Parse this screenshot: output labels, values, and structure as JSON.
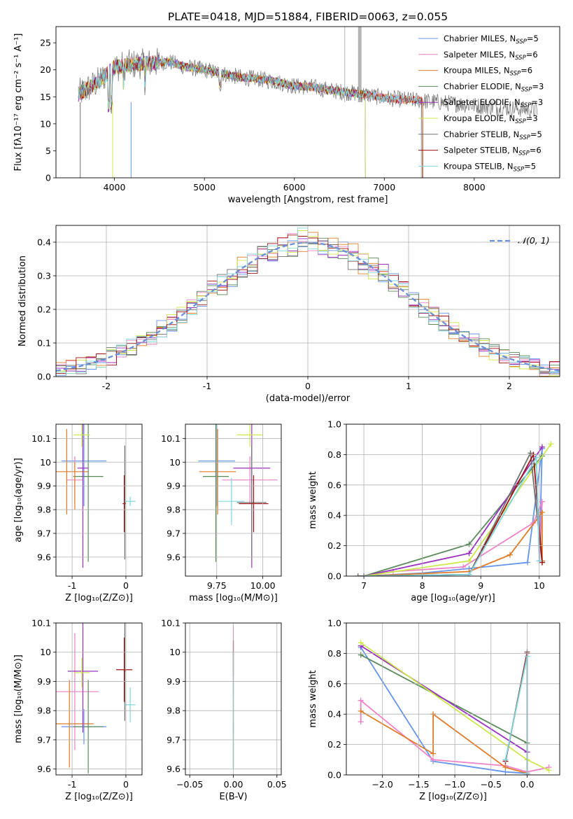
{
  "figure_title": "PLATE=0418, MJD=51884, FIBERID=0063, z=0.055",
  "colors": {
    "chab_miles": "#6495ed",
    "salp_miles": "#ee82c8",
    "krou_miles": "#e07b28",
    "chab_elodie": "#5a8a5a",
    "salp_elodie": "#9a30c0",
    "krou_elodie": "#cde84a",
    "chab_stelib": "#707070",
    "salp_stelib": "#a01010",
    "krou_stelib": "#7fd7df",
    "normal_curve": "#6a8fd8",
    "grid": "#b0b0b0",
    "tellurics": "#b4b4b4"
  },
  "chart_data": [
    {
      "id": "spectrum",
      "type": "line",
      "title": "PLATE=0418, MJD=51884, FIBERID=0063, z=0.055",
      "xlabel": "wavelength [Angstrom, rest frame]",
      "ylabel": "Flux [fλ10⁻¹⁷ erg cm⁻² s⁻¹ A⁻¹]",
      "xlim": [
        3350,
        8950
      ],
      "ylim": [
        0,
        28
      ],
      "xticks": [
        4000,
        5000,
        6000,
        7000,
        8000
      ],
      "yticks": [
        0,
        5,
        10,
        15,
        20,
        25
      ],
      "grid": false,
      "legend": "upper right",
      "continuum": [
        [
          3600,
          15.5
        ],
        [
          3800,
          17.5
        ],
        [
          4000,
          20.5
        ],
        [
          4200,
          21.0
        ],
        [
          4400,
          21.2
        ],
        [
          4600,
          21.5
        ],
        [
          4800,
          20.5
        ],
        [
          5000,
          20.0
        ],
        [
          5200,
          19.3
        ],
        [
          5400,
          18.6
        ],
        [
          5600,
          18.3
        ],
        [
          5800,
          17.8
        ],
        [
          6000,
          17.0
        ],
        [
          6200,
          16.8
        ],
        [
          6400,
          16.2
        ],
        [
          6600,
          15.8
        ],
        [
          6800,
          15.4
        ],
        [
          7000,
          14.8
        ],
        [
          7200,
          14.5
        ],
        [
          7400,
          14.3
        ],
        [
          7600,
          14.0
        ],
        [
          7800,
          13.7
        ],
        [
          8000,
          13.4
        ],
        [
          8200,
          13.1
        ],
        [
          8400,
          12.9
        ],
        [
          8700,
          12.5
        ]
      ],
      "series": [
        {
          "key": "chab_miles",
          "name": "Chabrier MILES, N_SSP=5",
          "legend_main": "Chabrier MILES, N",
          "legend_sub": "SSP",
          "legend_tail": "=5",
          "x_end": 7430
        },
        {
          "key": "salp_miles",
          "name": "Salpeter MILES, N_SSP=6",
          "legend_main": "Salpeter MILES, N",
          "legend_sub": "SSP",
          "legend_tail": "=6",
          "x_end": 7430
        },
        {
          "key": "krou_miles",
          "name": "Kroupa MILES, N_SSP=6",
          "legend_main": "Kroupa MILES, N",
          "legend_sub": "SSP",
          "legend_tail": "=6",
          "x_end": 7430
        },
        {
          "key": "chab_elodie",
          "name": "Chabrier ELODIE, N_SSP=3",
          "legend_main": "Chabrier ELODIE, N",
          "legend_sub": "SSP",
          "legend_tail": "=3",
          "x_end": 6790
        },
        {
          "key": "salp_elodie",
          "name": "Salpeter ELODIE, N_SSP=3",
          "legend_main": "Salpeter ELODIE, N",
          "legend_sub": "SSP",
          "legend_tail": "=3",
          "x_end": 6790
        },
        {
          "key": "krou_elodie",
          "name": "Kroupa ELODIE, N_SSP=3",
          "legend_main": "Kroupa ELODIE, N",
          "legend_sub": "SSP",
          "legend_tail": "=3",
          "x_end": 6790
        },
        {
          "key": "chab_stelib",
          "name": "Chabrier STELIB, N_SSP=5",
          "legend_main": "Chabrier STELIB, N",
          "legend_sub": "SSP",
          "legend_tail": "=5",
          "x_end": 8700
        },
        {
          "key": "salp_stelib",
          "name": "Salpeter STELIB, N_SSP=6",
          "legend_main": "Salpeter STELIB, N",
          "legend_sub": "SSP",
          "legend_tail": "=6",
          "x_end": 7420
        },
        {
          "key": "krou_stelib",
          "name": "Kroupa STELIB, N_SSP=5",
          "legend_main": "Kroupa STELIB, N",
          "legend_sub": "SSP",
          "legend_tail": "=5",
          "x_end": 7410
        }
      ]
    },
    {
      "id": "residuals",
      "type": "histogram",
      "xlabel": "(data-model)/error",
      "ylabel": "Normed distribution",
      "xlim": [
        -2.5,
        2.5
      ],
      "ylim": [
        0,
        0.45
      ],
      "xticks": [
        -2,
        -1,
        0,
        1,
        2
      ],
      "yticks": [
        0.0,
        0.1,
        0.2,
        0.3,
        0.4
      ],
      "grid": true,
      "legend": "upper right",
      "reference_curve": {
        "name": "𝒩(0, 1)",
        "mean": 0,
        "sigma": 1
      },
      "bin_width": 0.1,
      "note_series": "approximately normal histograms, one per model set"
    },
    {
      "id": "age_vs_z",
      "type": "errorbar",
      "xlabel": "Z [log₁₀(Z/Z⊙)]",
      "ylabel": "age  [log₁₀(age/yr)]",
      "xlim": [
        -1.3,
        0.3
      ],
      "ylim": [
        9.52,
        10.16
      ],
      "xticks": [
        -1,
        0
      ],
      "yticks": [
        9.6,
        9.7,
        9.8,
        9.9,
        10.0,
        10.1
      ],
      "grid": true,
      "points": [
        {
          "key": "chab_miles",
          "x": -0.78,
          "xerr": 0.42,
          "y": 10.005,
          "yerr": 0.19
        },
        {
          "key": "salp_miles",
          "x": -0.95,
          "xerr": 0.15,
          "y": 9.925,
          "yerr": 0.1
        },
        {
          "key": "krou_miles",
          "x": -1.1,
          "xerr": 0.4,
          "y": 9.96,
          "yerr": 0.18
        },
        {
          "key": "chab_elodie",
          "x": -0.7,
          "xerr": 0.28,
          "y": 9.94,
          "yerr": 0.36
        },
        {
          "key": "salp_elodie",
          "x": -0.8,
          "xerr": 0.1,
          "y": 9.975,
          "yerr": 0.42
        },
        {
          "key": "krou_elodie",
          "x": -0.82,
          "xerr": 0.15,
          "y": 10.115,
          "yerr": 0.05
        },
        {
          "key": "chab_stelib",
          "x": -0.02,
          "xerr": 0.02,
          "y": 9.83,
          "yerr": 0.24
        },
        {
          "key": "salp_stelib",
          "x": -0.03,
          "xerr": 0.03,
          "y": 9.825,
          "yerr": 0.12
        },
        {
          "key": "krou_stelib",
          "x": 0.08,
          "xerr": 0.1,
          "y": 9.835,
          "yerr": 0.02
        },
        {
          "key": "krou_miles",
          "x": -0.95,
          "xerr": 0.01,
          "y": 9.9,
          "yerr": 0.1
        }
      ]
    },
    {
      "id": "age_vs_mass",
      "type": "errorbar",
      "xlabel": "mass [log₁₀(M/M⊙)]",
      "ylabel": "",
      "xlim": [
        9.58,
        10.1
      ],
      "ylim": [
        9.52,
        10.16
      ],
      "xticks": [
        9.75,
        10.0
      ],
      "xticklabels": [
        "9.75",
        "10.00"
      ],
      "yticks": [
        9.6,
        9.7,
        9.8,
        9.9,
        10.0,
        10.1
      ],
      "grid": true,
      "points": [
        {
          "key": "chab_miles",
          "x": 9.75,
          "xerr": 0.1,
          "y": 10.005,
          "yerr": 0.19
        },
        {
          "key": "salp_miles",
          "x": 9.93,
          "xerr": 0.15,
          "y": 9.925,
          "yerr": 0.1
        },
        {
          "key": "krou_miles",
          "x": 9.755,
          "xerr": 0.1,
          "y": 9.96,
          "yerr": 0.18
        },
        {
          "key": "chab_elodie",
          "x": 9.745,
          "xerr": 0.07,
          "y": 9.94,
          "yerr": 0.36
        },
        {
          "key": "salp_elodie",
          "x": 9.94,
          "xerr": 0.1,
          "y": 9.975,
          "yerr": 0.42
        },
        {
          "key": "krou_elodie",
          "x": 9.93,
          "xerr": 0.07,
          "y": 10.115,
          "yerr": 0.05
        },
        {
          "key": "chab_stelib",
          "x": 9.94,
          "xerr": 0.08,
          "y": 9.83,
          "yerr": 0.24
        },
        {
          "key": "salp_stelib",
          "x": 9.95,
          "xerr": 0.08,
          "y": 9.825,
          "yerr": 0.12
        },
        {
          "key": "krou_stelib",
          "x": 9.83,
          "xerr": 0.07,
          "y": 9.835,
          "yerr": 0.1
        }
      ]
    },
    {
      "id": "weight_vs_age",
      "type": "line",
      "xlabel": "age  [log₁₀(age/yr)]",
      "ylabel": "mass weight",
      "xlim": [
        6.7,
        10.35
      ],
      "ylim": [
        0,
        1.0
      ],
      "xticks": [
        7,
        8,
        9,
        10
      ],
      "yticks": [
        0.0,
        0.2,
        0.4,
        0.6,
        0.8,
        1.0
      ],
      "grid": true,
      "series": [
        {
          "key": "chab_miles",
          "x": [
            7.0,
            8.0,
            8.8,
            9.8,
            10.05,
            10.0
          ],
          "y": [
            0.0,
            0.02,
            0.05,
            0.09,
            0.84,
            0.1
          ]
        },
        {
          "key": "salp_miles",
          "x": [
            7.0,
            7.5,
            8.7,
            9.9,
            10.05,
            10.0
          ],
          "y": [
            0.0,
            0.03,
            0.06,
            0.35,
            0.49,
            0.1
          ]
        },
        {
          "key": "krou_miles",
          "x": [
            7.0,
            8.8,
            9.5,
            10.05,
            10.05
          ],
          "y": [
            0.0,
            0.03,
            0.14,
            0.42,
            0.1
          ]
        },
        {
          "key": "chab_elodie",
          "x": [
            7.0,
            8.8,
            10.05
          ],
          "y": [
            0.0,
            0.21,
            0.79
          ]
        },
        {
          "key": "salp_elodie",
          "x": [
            7.0,
            8.8,
            10.05
          ],
          "y": [
            0.0,
            0.15,
            0.85
          ]
        },
        {
          "key": "krou_elodie",
          "x": [
            7.0,
            8.8,
            10.2
          ],
          "y": [
            0.0,
            0.1,
            0.87
          ]
        },
        {
          "key": "chab_stelib",
          "x": [
            6.9,
            8.8,
            9.85,
            10.05
          ],
          "y": [
            0.0,
            0.01,
            0.81,
            0.09
          ]
        },
        {
          "key": "salp_stelib",
          "x": [
            7.0,
            8.8,
            9.9,
            10.05
          ],
          "y": [
            0.0,
            0.01,
            0.8,
            0.09
          ]
        },
        {
          "key": "krou_stelib",
          "x": [
            7.0,
            8.8,
            9.95,
            10.0
          ],
          "y": [
            0.0,
            0.01,
            0.78,
            0.1
          ]
        }
      ]
    },
    {
      "id": "mass_vs_z",
      "type": "errorbar",
      "xlabel": "Z [log₁₀(Z/Z⊙)]",
      "ylabel": "mass [log₁₀(M/M⊙)]",
      "xlim": [
        -1.3,
        0.3
      ],
      "ylim": [
        9.58,
        10.1
      ],
      "xticks": [
        -1,
        0
      ],
      "yticks": [
        9.6,
        9.7,
        9.8,
        9.9,
        10.0,
        10.1
      ],
      "grid": true,
      "points": [
        {
          "key": "chab_miles",
          "x": -0.78,
          "xerr": 0.42,
          "y": 9.745,
          "yerr": 0.06
        },
        {
          "key": "salp_miles",
          "x": -0.95,
          "xerr": 0.45,
          "y": 9.865,
          "yerr": 0.2
        },
        {
          "key": "krou_miles",
          "x": -1.05,
          "xerr": 0.45,
          "y": 9.755,
          "yerr": 0.15
        },
        {
          "key": "chab_elodie",
          "x": -0.7,
          "xerr": 0.28,
          "y": 9.745,
          "yerr": 0.16
        },
        {
          "key": "salp_elodie",
          "x": -0.8,
          "xerr": 0.28,
          "y": 9.935,
          "yerr": 0.21
        },
        {
          "key": "krou_elodie",
          "x": -0.82,
          "xerr": 0.15,
          "y": 9.93,
          "yerr": 0.05
        },
        {
          "key": "chab_stelib",
          "x": -0.02,
          "xerr": 0.02,
          "y": 9.935,
          "yerr": 0.17
        },
        {
          "key": "salp_stelib",
          "x": -0.03,
          "xerr": 0.15,
          "y": 9.94,
          "yerr": 0.11
        },
        {
          "key": "krou_stelib",
          "x": 0.08,
          "xerr": 0.1,
          "y": 9.82,
          "yerr": 0.06
        }
      ]
    },
    {
      "id": "mass_vs_ebv",
      "type": "errorbar",
      "xlabel": "E(B-V)",
      "ylabel": "",
      "xlim": [
        -0.055,
        0.055
      ],
      "ylim": [
        9.58,
        10.1
      ],
      "xticks": [
        -0.05,
        0.0,
        0.05
      ],
      "xticklabels": [
        "−0.05",
        "0.00",
        "0.05"
      ],
      "yticks": [
        9.6,
        9.7,
        9.8,
        9.9,
        10.0,
        10.1
      ],
      "grid": true,
      "points": [
        {
          "key": "salp_miles",
          "x": 0.0,
          "xerr": 0.0,
          "y": 9.97,
          "yerr": 0.12
        },
        {
          "key": "salp_stelib",
          "x": 0.0,
          "xerr": 0.0,
          "y": 9.98,
          "yerr": 0.06
        },
        {
          "key": "salp_elodie",
          "x": 0.0,
          "xerr": 0.0,
          "y": 9.74,
          "yerr": 0.02
        },
        {
          "key": "chab_elodie",
          "x": 0.0,
          "xerr": 0.0,
          "y": 9.8,
          "yerr": 0.2
        },
        {
          "key": "krou_stelib",
          "x": 0.0,
          "xerr": 0.0,
          "y": 9.8,
          "yerr": 0.2
        }
      ]
    },
    {
      "id": "weight_vs_z",
      "type": "line",
      "xlabel": "Z [log₁₀(Z/Z⊙)]",
      "ylabel": "mass weight",
      "xlim": [
        -2.5,
        0.45
      ],
      "ylim": [
        0,
        1.0
      ],
      "xticks": [
        -2.0,
        -1.5,
        -1.0,
        -0.5,
        0.0
      ],
      "xticklabels": [
        "−2.0",
        "−1.5",
        "−1.0",
        "−0.5",
        "0.0"
      ],
      "yticks": [
        0.0,
        0.2,
        0.4,
        0.6,
        0.8,
        1.0
      ],
      "grid": true,
      "series": [
        {
          "key": "chab_miles",
          "x": [
            -2.3,
            -1.3,
            -0.3,
            0.0
          ],
          "y": [
            0.84,
            0.09,
            0.02,
            0.01
          ]
        },
        {
          "key": "salp_miles",
          "x": [
            -2.3,
            -2.3,
            -1.3,
            -0.3,
            0.0,
            0.3
          ],
          "y": [
            0.35,
            0.49,
            0.1,
            0.06,
            0.02,
            0.05
          ]
        },
        {
          "key": "krou_miles",
          "x": [
            -2.3,
            -1.3,
            -1.3,
            -0.3,
            0.0
          ],
          "y": [
            0.42,
            0.14,
            0.4,
            0.05,
            0.01
          ]
        },
        {
          "key": "chab_elodie",
          "x": [
            -2.3,
            0.0,
            0.0
          ],
          "y": [
            0.79,
            0.21,
            0.0
          ]
        },
        {
          "key": "salp_elodie",
          "x": [
            -2.3,
            0.0,
            0.0
          ],
          "y": [
            0.85,
            0.15,
            0.0
          ]
        },
        {
          "key": "krou_elodie",
          "x": [
            -2.3,
            0.0,
            0.3
          ],
          "y": [
            0.87,
            0.1,
            0.03
          ]
        },
        {
          "key": "chab_stelib",
          "x": [
            -0.3,
            0.0,
            0.0
          ],
          "y": [
            0.09,
            0.81,
            0.01
          ]
        },
        {
          "key": "salp_stelib",
          "x": [
            -0.3,
            0.0,
            0.0
          ],
          "y": [
            0.09,
            0.8,
            0.01
          ]
        },
        {
          "key": "krou_stelib",
          "x": [
            -0.3,
            0.0,
            0.0
          ],
          "y": [
            0.1,
            0.78,
            0.01
          ]
        }
      ]
    }
  ]
}
